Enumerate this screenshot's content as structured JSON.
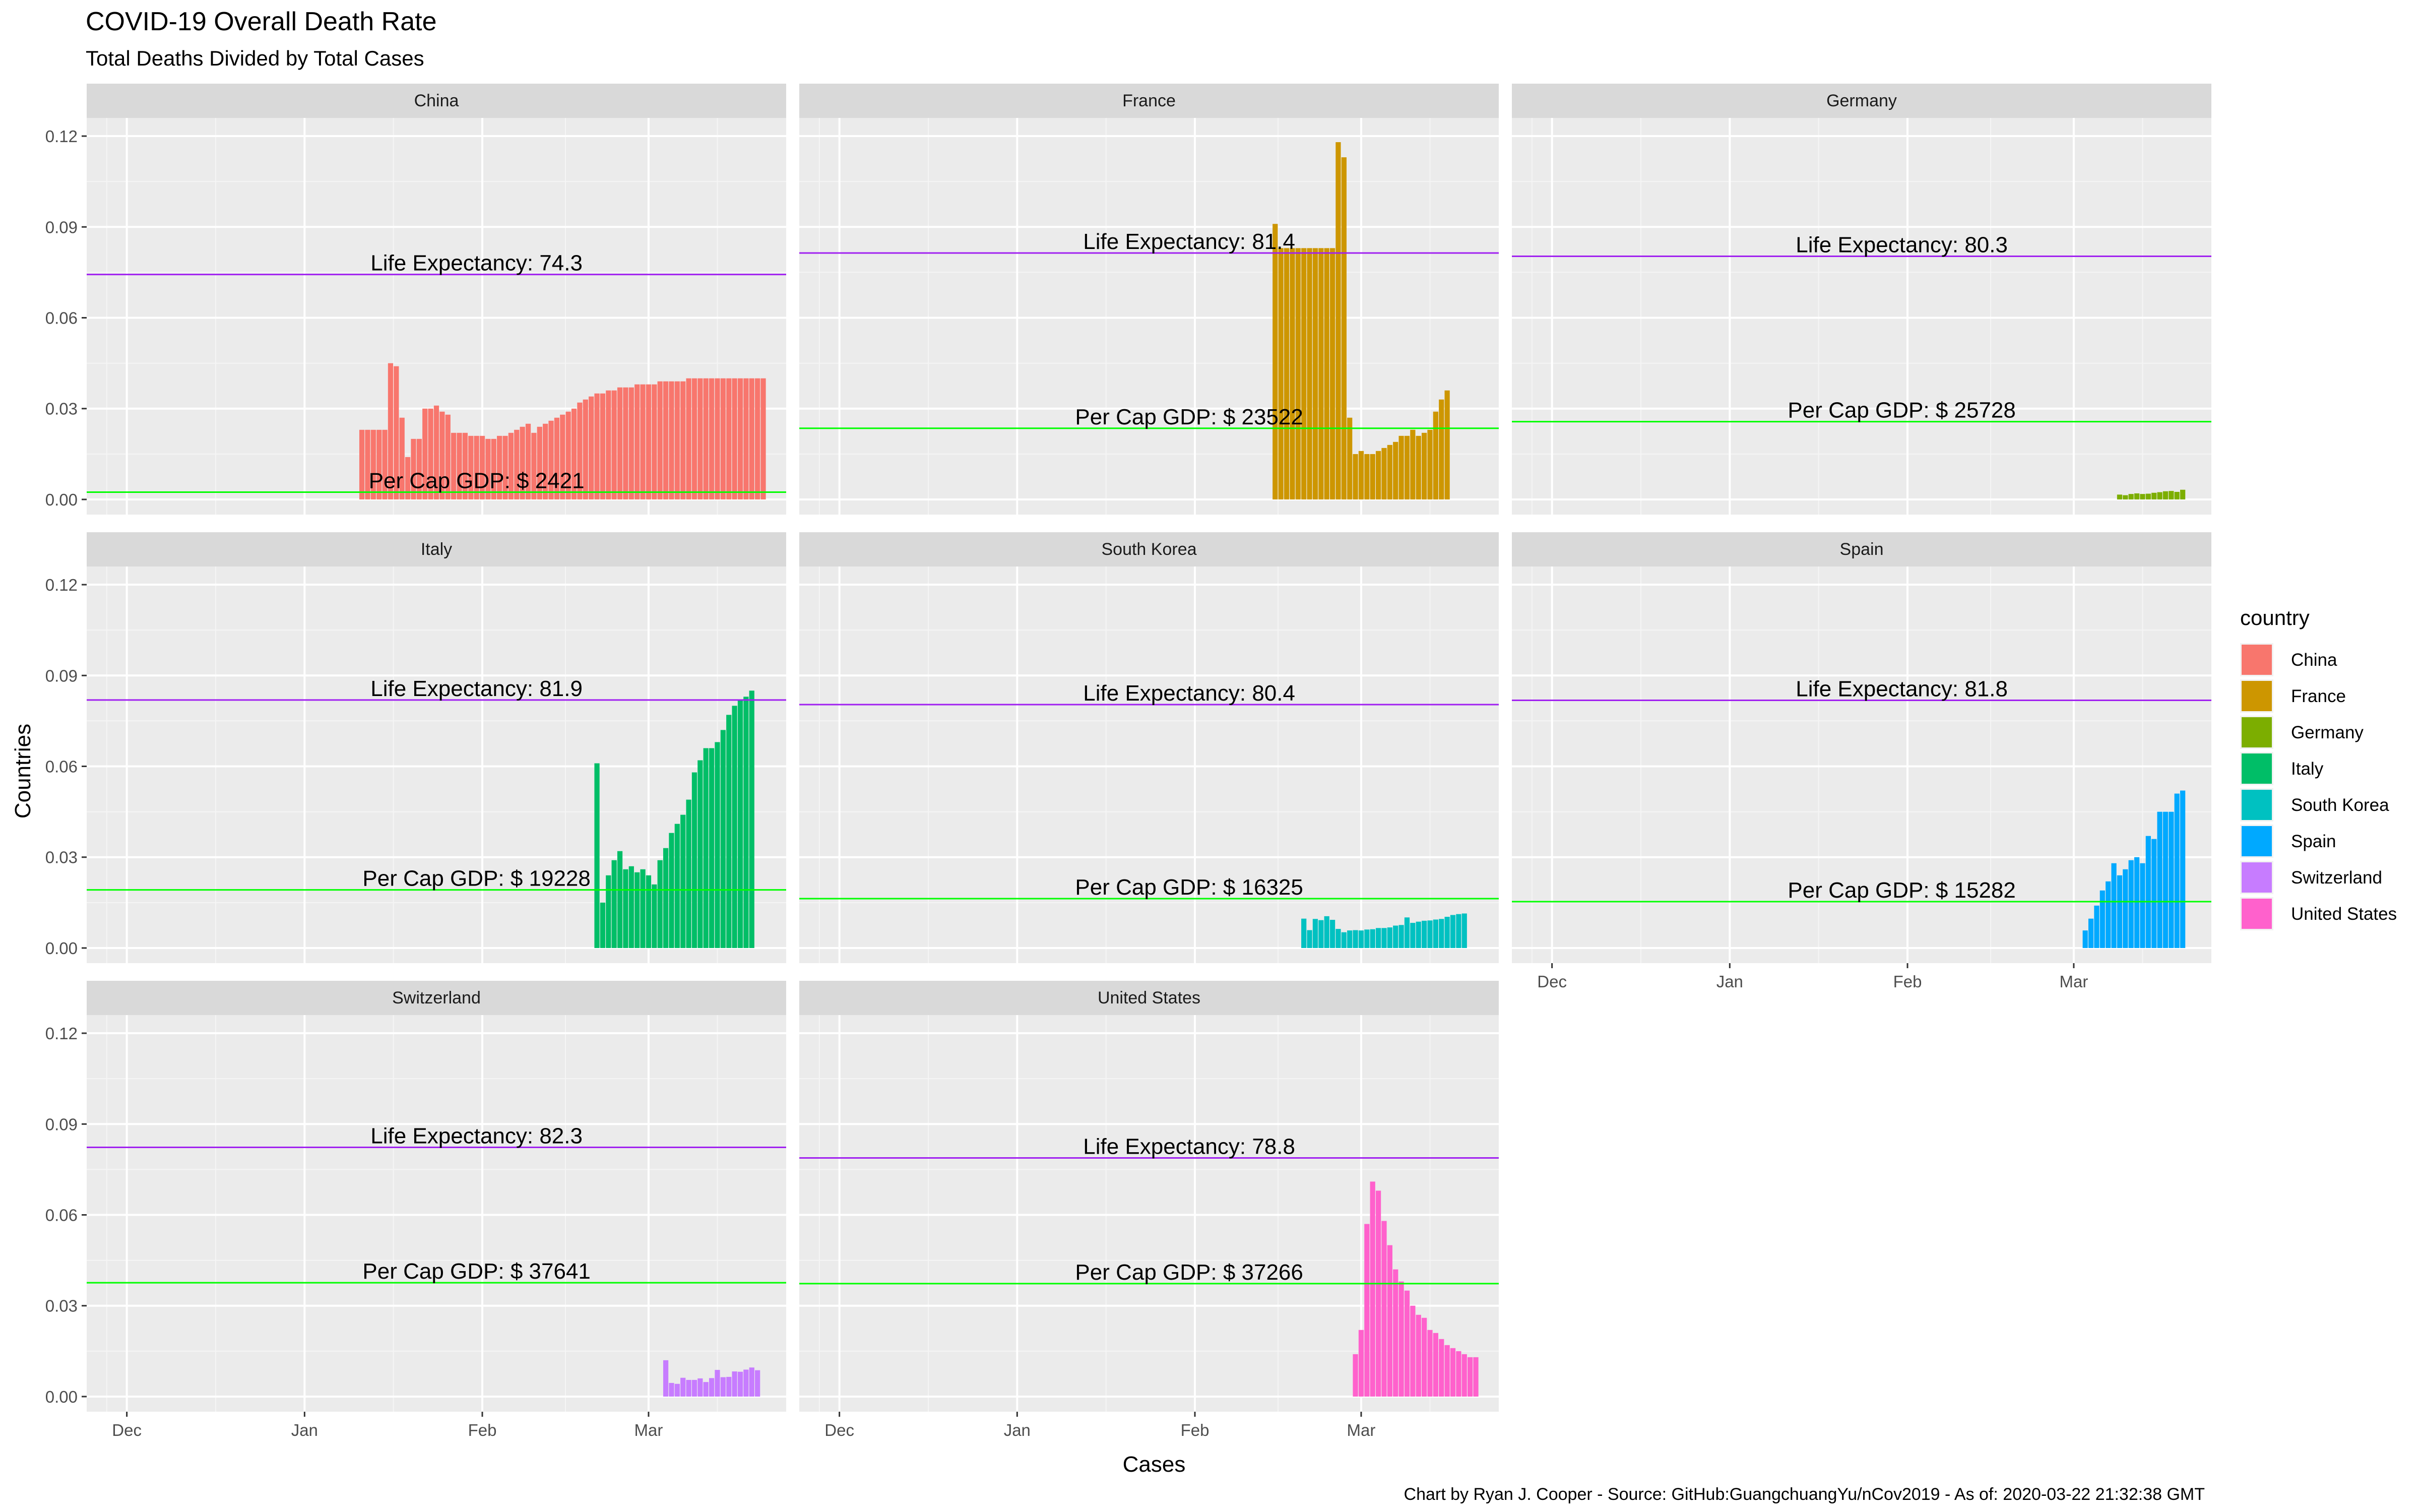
{
  "chart_data": {
    "type": "bar",
    "title": "COVID-19 Overall Death Rate",
    "subtitle": "Total Deaths Divided by Total Cases",
    "xlabel": "Cases",
    "ylabel": "Countries",
    "caption": "Chart by Ryan J. Cooper - Source: GitHub:GuangchuangYu/nCov2019 - As of:  2020-03-22 21:32:38 GMT",
    "ylim": [
      -0.005,
      0.126
    ],
    "yticks": [
      0.0,
      0.03,
      0.06,
      0.09,
      0.12
    ],
    "ytick_labels": [
      "0.00",
      "0.03",
      "0.06",
      "0.09",
      "0.12"
    ],
    "x_range": [
      "2019-11-24",
      "2020-03-25"
    ],
    "xticks": [
      "2019-12-01",
      "2020-01-01",
      "2020-02-01",
      "2020-03-01"
    ],
    "xtick_labels": [
      "Dec",
      "Jan",
      "Feb",
      "Mar"
    ],
    "grid": true,
    "legend": {
      "title": "country",
      "position": "right",
      "items": [
        {
          "label": "China",
          "color": "#F8766D"
        },
        {
          "label": "France",
          "color": "#CD9600"
        },
        {
          "label": "Germany",
          "color": "#7CAE00"
        },
        {
          "label": "Italy",
          "color": "#00BE67"
        },
        {
          "label": "South Korea",
          "color": "#00C1C1"
        },
        {
          "label": "Spain",
          "color": "#00A9FF"
        },
        {
          "label": "Switzerland",
          "color": "#C77CFF"
        },
        {
          "label": "United States",
          "color": "#FF61CC"
        }
      ]
    },
    "reference_colors": {
      "life_expectancy": "#A020F0",
      "gdp": "#00FF00"
    },
    "panels": [
      {
        "country": "China",
        "color": "#F8766D",
        "life_expectancy": 74.3,
        "life_label": "Life Expectancy: 74.3",
        "gdp_line": 0.0024,
        "gdp_label": "Per Cap GDP: $  2421",
        "start": "2020-01-11",
        "values": [
          0.023,
          0.023,
          0.023,
          0.023,
          0.023,
          0.045,
          0.044,
          0.027,
          0.014,
          0.02,
          0.02,
          0.03,
          0.03,
          0.031,
          0.029,
          0.028,
          0.022,
          0.022,
          0.022,
          0.021,
          0.021,
          0.021,
          0.02,
          0.02,
          0.021,
          0.021,
          0.022,
          0.023,
          0.024,
          0.025,
          0.022,
          0.024,
          0.025,
          0.026,
          0.027,
          0.028,
          0.029,
          0.03,
          0.032,
          0.033,
          0.034,
          0.035,
          0.035,
          0.036,
          0.036,
          0.037,
          0.037,
          0.037,
          0.038,
          0.038,
          0.038,
          0.038,
          0.039,
          0.039,
          0.039,
          0.039,
          0.039,
          0.04,
          0.04,
          0.04,
          0.04,
          0.04,
          0.04,
          0.04,
          0.04,
          0.04,
          0.04,
          0.04,
          0.04,
          0.04,
          0.04
        ]
      },
      {
        "country": "France",
        "color": "#CD9600",
        "life_expectancy": 81.4,
        "life_label": "Life Expectancy: 81.4",
        "gdp_line": 0.0235,
        "gdp_label": "Per Cap GDP: $ 23522",
        "start": "2020-02-15",
        "values": [
          0.091,
          0.083,
          0.083,
          0.083,
          0.083,
          0.083,
          0.083,
          0.083,
          0.083,
          0.083,
          0.083,
          0.118,
          0.113,
          0.027,
          0.015,
          0.016,
          0.015,
          0.015,
          0.016,
          0.017,
          0.018,
          0.019,
          0.021,
          0.021,
          0.023,
          0.021,
          0.022,
          0.023,
          0.029,
          0.033,
          0.036
        ]
      },
      {
        "country": "Germany",
        "color": "#7CAE00",
        "life_expectancy": 80.3,
        "life_label": "Life Expectancy: 80.3",
        "gdp_line": 0.0257,
        "gdp_label": "Per Cap GDP: $ 25728",
        "start": "2020-03-09",
        "values": [
          0.0016,
          0.0014,
          0.0018,
          0.002,
          0.0018,
          0.0019,
          0.0022,
          0.0024,
          0.0027,
          0.0028,
          0.0025,
          0.0032
        ]
      },
      {
        "country": "Italy",
        "color": "#00BE67",
        "life_expectancy": 81.9,
        "life_label": "Life Expectancy: 81.9",
        "gdp_line": 0.0192,
        "gdp_label": "Per Cap GDP: $ 19228",
        "start": "2020-02-21",
        "values": [
          0.061,
          0.015,
          0.024,
          0.029,
          0.032,
          0.026,
          0.027,
          0.025,
          0.026,
          0.024,
          0.021,
          0.029,
          0.033,
          0.038,
          0.041,
          0.044,
          0.049,
          0.058,
          0.062,
          0.066,
          0.066,
          0.068,
          0.072,
          0.077,
          0.08,
          0.082,
          0.083,
          0.085
        ]
      },
      {
        "country": "South Korea",
        "color": "#00C1C1",
        "life_expectancy": 80.4,
        "life_label": "Life Expectancy: 80.4",
        "gdp_line": 0.0163,
        "gdp_label": "Per Cap GDP: $ 16325",
        "start": "2020-02-20",
        "values": [
          0.0097,
          0.0059,
          0.0096,
          0.0092,
          0.0105,
          0.0093,
          0.0063,
          0.0052,
          0.0058,
          0.0059,
          0.0058,
          0.0061,
          0.0062,
          0.0066,
          0.0066,
          0.0068,
          0.0074,
          0.0076,
          0.0101,
          0.0083,
          0.0087,
          0.009,
          0.0091,
          0.0094,
          0.0096,
          0.0103,
          0.0109,
          0.0112,
          0.0114
        ]
      },
      {
        "country": "Spain",
        "color": "#00A9FF",
        "life_expectancy": 81.8,
        "life_label": "Life Expectancy: 81.8",
        "gdp_line": 0.0153,
        "gdp_label": "Per Cap GDP: $ 15282",
        "start": "2020-03-03",
        "values": [
          0.0058,
          0.0097,
          0.014,
          0.019,
          0.022,
          0.028,
          0.024,
          0.026,
          0.029,
          0.03,
          0.028,
          0.037,
          0.036,
          0.045,
          0.045,
          0.045,
          0.051,
          0.052
        ]
      },
      {
        "country": "Switzerland",
        "color": "#C77CFF",
        "life_expectancy": 82.3,
        "life_label": "Life Expectancy: 82.3",
        "gdp_line": 0.0376,
        "gdp_label": "Per Cap GDP: $ 37641",
        "start": "2020-03-04",
        "values": [
          0.012,
          0.0045,
          0.0042,
          0.0062,
          0.0055,
          0.0055,
          0.006,
          0.0048,
          0.0061,
          0.0088,
          0.0064,
          0.0065,
          0.0083,
          0.0082,
          0.0089,
          0.0096,
          0.0087
        ]
      },
      {
        "country": "United States",
        "color": "#FF61CC",
        "life_expectancy": 78.8,
        "life_label": "Life Expectancy: 78.8",
        "gdp_line": 0.0373,
        "gdp_label": "Per Cap GDP: $ 37266",
        "start": "2020-02-29",
        "values": [
          0.014,
          0.022,
          0.057,
          0.071,
          0.068,
          0.058,
          0.05,
          0.042,
          0.038,
          0.035,
          0.03,
          0.027,
          0.026,
          0.022,
          0.021,
          0.019,
          0.017,
          0.016,
          0.015,
          0.014,
          0.013,
          0.013
        ]
      }
    ]
  }
}
